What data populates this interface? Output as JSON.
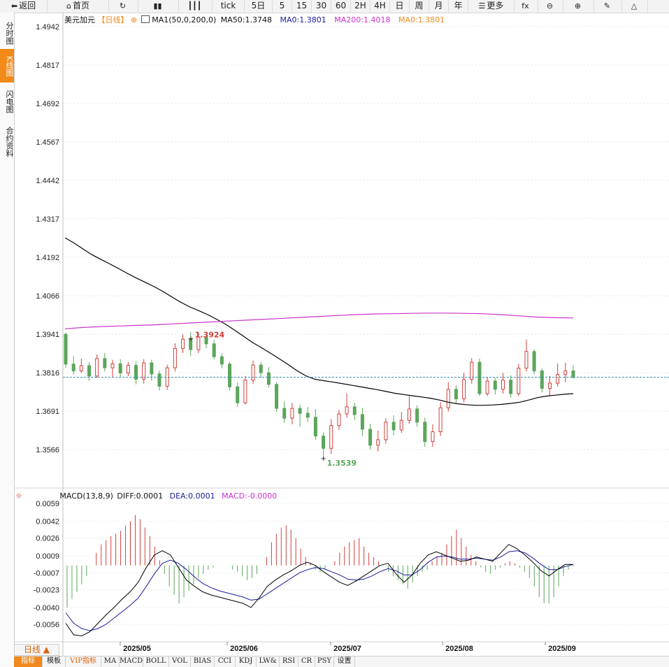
{
  "toolbar": {
    "items": [
      {
        "name": "back-button",
        "label": "返回",
        "icon": "back-arrow-icon",
        "glyph": "⬅"
      },
      {
        "name": "home-button",
        "label": "首页",
        "icon": "home-icon",
        "glyph": "⌂"
      },
      {
        "name": "refresh-button",
        "label": "",
        "icon": "refresh-icon",
        "glyph": "↻"
      },
      {
        "name": "chart-type-button",
        "label": "",
        "icon": "bar-chart-icon",
        "glyph": "▮▮"
      },
      {
        "name": "candles-button",
        "label": "",
        "icon": "candlestick-icon",
        "glyph": "┃┃┃"
      },
      {
        "name": "period-tick",
        "label": "tick",
        "icon": "",
        "glyph": ""
      },
      {
        "name": "period-5d",
        "label": "5日",
        "icon": "",
        "glyph": ""
      },
      {
        "name": "period-5",
        "label": "5",
        "icon": "",
        "glyph": ""
      },
      {
        "name": "period-15",
        "label": "15",
        "icon": "",
        "glyph": ""
      },
      {
        "name": "period-30",
        "label": "30",
        "icon": "",
        "glyph": ""
      },
      {
        "name": "period-60",
        "label": "60",
        "icon": "",
        "glyph": ""
      },
      {
        "name": "period-2h",
        "label": "2H",
        "icon": "",
        "glyph": ""
      },
      {
        "name": "period-4h",
        "label": "4H",
        "icon": "",
        "glyph": ""
      },
      {
        "name": "period-day",
        "label": "日",
        "icon": "",
        "glyph": ""
      },
      {
        "name": "period-week",
        "label": "周",
        "icon": "",
        "glyph": ""
      },
      {
        "name": "period-month",
        "label": "月",
        "icon": "",
        "glyph": ""
      },
      {
        "name": "period-year",
        "label": "年",
        "icon": "",
        "glyph": ""
      },
      {
        "name": "more-button",
        "label": "更多",
        "icon": "menu-icon",
        "glyph": "☰"
      },
      {
        "name": "fx-button",
        "label": "",
        "icon": "fx-icon",
        "glyph": "fx"
      },
      {
        "name": "zoom-out-button",
        "label": "",
        "icon": "zoom-out-icon",
        "glyph": "⊖"
      },
      {
        "name": "zoom-in-button",
        "label": "",
        "icon": "zoom-in-icon",
        "glyph": "⊕"
      },
      {
        "name": "draw-button",
        "label": "",
        "icon": "pen-icon",
        "glyph": "✎"
      },
      {
        "name": "triangle-button",
        "label": "",
        "icon": "triangle-icon",
        "glyph": "△"
      }
    ]
  },
  "sidetabs": [
    {
      "label": "分时图",
      "active": false
    },
    {
      "label": "K线图",
      "active": true
    },
    {
      "label": "闪电图",
      "active": false
    },
    {
      "label": "合约资料",
      "active": false
    }
  ],
  "legend": {
    "symbol": "美元加元",
    "period": "【日线】",
    "gear": "⊕",
    "ma1": "MA1(50,0,200,0)",
    "ma50": "MA50:1.3748",
    "ma0": "MA0:1.3801",
    "ma200": "MA200:1.4018",
    "ma0b": "MA0:1.3801"
  },
  "macd_legend": {
    "name": "MACD(13,8,9)",
    "diff": "DIFF:0.0001",
    "dea": "DEA:0.0001",
    "macd": "MACD:-0.0000"
  },
  "colors": {
    "up": "#d0413c",
    "down": "#5ba65b",
    "ma50": "#000000",
    "ma200": "#cc33cc",
    "dea": "#1b1b9e",
    "macd_label": "#cc33cc",
    "ma0_label": "#f08a1d",
    "last_line": "#2a8fb0"
  },
  "chart_data": {
    "type": "candlestick",
    "title": "美元加元",
    "y_ticks": [
      "1.4942",
      "1.4817",
      "1.4692",
      "1.4567",
      "1.4442",
      "1.4317",
      "1.4192",
      "1.4066",
      "1.3941",
      "1.3816",
      "1.3691",
      "1.3566"
    ],
    "ylim": [
      1.3466,
      1.4992
    ],
    "x_ticks": [
      "2025/05",
      "2025/06",
      "2025/07",
      "2025/08",
      "2025/09"
    ],
    "high_annotation": "1.3924",
    "low_annotation": "1.3539",
    "last_value": 1.3801,
    "ma50_series": [
      1.4255,
      1.4238,
      1.4219,
      1.42,
      1.4185,
      1.417,
      1.4155,
      1.4139,
      1.4124,
      1.411,
      1.4096,
      1.408,
      1.4062,
      1.4045,
      1.403,
      1.4018,
      1.4005,
      1.399,
      1.3974,
      1.3955,
      1.3935,
      1.3915,
      1.3898,
      1.388,
      1.3862,
      1.3843,
      1.3823,
      1.3806,
      1.3795,
      1.379,
      1.3786,
      1.3781,
      1.3776,
      1.3771,
      1.3766,
      1.3761,
      1.3755,
      1.3749,
      1.3745,
      1.3741,
      1.3737,
      1.3733,
      1.3727,
      1.372,
      1.3715,
      1.3712,
      1.371,
      1.371,
      1.3711,
      1.3713,
      1.3716,
      1.372,
      1.3727,
      1.3735,
      1.374,
      1.3743,
      1.3746,
      1.3748
    ],
    "ma200_series": [
      1.3959,
      1.3963,
      1.3966,
      1.3968,
      1.397,
      1.3972,
      1.3975,
      1.3978,
      1.3981,
      1.3984,
      1.3987,
      1.399,
      1.3993,
      1.3996,
      1.3999,
      1.4002,
      1.4005,
      1.4007,
      1.4008,
      1.4009,
      1.401,
      1.401,
      1.4009,
      1.4008,
      1.4005,
      1.4001,
      1.3997,
      1.3995,
      1.3994
    ],
    "candles": [
      [
        1.3941,
        1.3844,
        1.3946,
        1.3832
      ],
      [
        1.3844,
        1.3822,
        1.387,
        1.381
      ],
      [
        1.3822,
        1.3839,
        1.3862,
        1.3815
      ],
      [
        1.3839,
        1.3805,
        1.385,
        1.379
      ],
      [
        1.3805,
        1.3862,
        1.3875,
        1.3799
      ],
      [
        1.3862,
        1.3832,
        1.388,
        1.382
      ],
      [
        1.3832,
        1.3845,
        1.3858,
        1.38
      ],
      [
        1.3845,
        1.3815,
        1.386,
        1.3801
      ],
      [
        1.3815,
        1.384,
        1.3851,
        1.3805
      ],
      [
        1.384,
        1.3795,
        1.3854,
        1.3778
      ],
      [
        1.3795,
        1.3848,
        1.386,
        1.378
      ],
      [
        1.3848,
        1.3812,
        1.3858,
        1.379
      ],
      [
        1.3812,
        1.3772,
        1.3822,
        1.3758
      ],
      [
        1.3772,
        1.3832,
        1.3842,
        1.376
      ],
      [
        1.3832,
        1.3895,
        1.3912,
        1.382
      ],
      [
        1.3895,
        1.3925,
        1.3941,
        1.388
      ],
      [
        1.3925,
        1.3891,
        1.3948,
        1.387
      ],
      [
        1.3891,
        1.3932,
        1.3946,
        1.388
      ],
      [
        1.3932,
        1.391,
        1.3941,
        1.3895
      ],
      [
        1.391,
        1.3868,
        1.3922,
        1.386
      ],
      [
        1.3868,
        1.3844,
        1.3879,
        1.383
      ],
      [
        1.3844,
        1.377,
        1.3851,
        1.3758
      ],
      [
        1.377,
        1.3718,
        1.3785,
        1.3705
      ],
      [
        1.3718,
        1.3792,
        1.3805,
        1.3712
      ],
      [
        1.3792,
        1.3841,
        1.3856,
        1.378
      ],
      [
        1.3841,
        1.3816,
        1.3851,
        1.38
      ],
      [
        1.3816,
        1.3778,
        1.3834,
        1.3768
      ],
      [
        1.3778,
        1.37,
        1.3785,
        1.3689
      ],
      [
        1.37,
        1.3668,
        1.3722,
        1.3652
      ],
      [
        1.3668,
        1.37,
        1.3718,
        1.3648
      ],
      [
        1.37,
        1.3684,
        1.3712,
        1.364
      ],
      [
        1.3684,
        1.3671,
        1.3704,
        1.3655
      ],
      [
        1.3671,
        1.361,
        1.3698,
        1.3598
      ],
      [
        1.361,
        1.357,
        1.3622,
        1.3539
      ],
      [
        1.357,
        1.3644,
        1.3665,
        1.3552
      ],
      [
        1.3644,
        1.3682,
        1.3695,
        1.363
      ],
      [
        1.3682,
        1.3705,
        1.3748,
        1.367
      ],
      [
        1.3705,
        1.368,
        1.3718,
        1.3662
      ],
      [
        1.368,
        1.3632,
        1.3702,
        1.361
      ],
      [
        1.3632,
        1.358,
        1.365,
        1.3566
      ],
      [
        1.358,
        1.3598,
        1.3628,
        1.356
      ],
      [
        1.3598,
        1.3655,
        1.3668,
        1.3585
      ],
      [
        1.3655,
        1.363,
        1.3677,
        1.3612
      ],
      [
        1.363,
        1.3661,
        1.3688,
        1.362
      ],
      [
        1.3661,
        1.3698,
        1.374,
        1.365
      ],
      [
        1.3698,
        1.3655,
        1.371,
        1.364
      ],
      [
        1.3655,
        1.3592,
        1.367,
        1.3575
      ],
      [
        1.3592,
        1.3624,
        1.3648,
        1.3575
      ],
      [
        1.3624,
        1.3702,
        1.372,
        1.361
      ],
      [
        1.3702,
        1.3762,
        1.3785,
        1.369
      ],
      [
        1.3762,
        1.3731,
        1.3775,
        1.3718
      ],
      [
        1.3731,
        1.3794,
        1.3816,
        1.372
      ],
      [
        1.3794,
        1.385,
        1.3864,
        1.378
      ],
      [
        1.385,
        1.3748,
        1.3862,
        1.374
      ],
      [
        1.3748,
        1.3789,
        1.3801,
        1.374
      ],
      [
        1.3789,
        1.3762,
        1.38,
        1.3745
      ],
      [
        1.3762,
        1.3792,
        1.3815,
        1.3748
      ],
      [
        1.3792,
        1.3748,
        1.3808,
        1.3735
      ],
      [
        1.3748,
        1.3831,
        1.3845,
        1.374
      ],
      [
        1.3831,
        1.3885,
        1.3924,
        1.382
      ],
      [
        1.3885,
        1.3822,
        1.3892,
        1.381
      ],
      [
        1.3822,
        1.3765,
        1.383,
        1.3752
      ],
      [
        1.3765,
        1.3782,
        1.3805,
        1.374
      ],
      [
        1.3782,
        1.381,
        1.3846,
        1.377
      ],
      [
        1.381,
        1.3822,
        1.3848,
        1.3785
      ],
      [
        1.3822,
        1.3801,
        1.384,
        1.3796
      ]
    ],
    "macd": {
      "ylim": [
        -0.0074,
        0.0066
      ],
      "y_ticks": [
        "0.0059",
        "0.0042",
        "0.0026",
        "0.0009",
        "-0.0007",
        "-0.0023",
        "-0.0040",
        "-0.0056"
      ],
      "diff": [
        -0.0055,
        -0.0066,
        -0.0067,
        -0.0063,
        -0.0055,
        -0.0047,
        -0.004,
        -0.0032,
        -0.0025,
        -0.0016,
        -0.0002,
        0.001,
        0.0014,
        0.001,
        -0.0002,
        -0.0014,
        -0.002,
        -0.0025,
        -0.0028,
        -0.003,
        -0.0032,
        -0.0034,
        -0.0036,
        -0.004,
        -0.0031,
        -0.002,
        -0.0014,
        -0.0009,
        -0.0005,
        0.0,
        0.0003,
        0.0,
        -0.0006,
        -0.0011,
        -0.0016,
        -0.0019,
        -0.0015,
        -0.001,
        -0.0005,
        0.0,
        0.0002,
        -0.0008,
        -0.0016,
        -0.0009,
        0.0002,
        0.001,
        0.0013,
        0.001,
        0.0007,
        0.0004,
        0.0005,
        0.0008,
        0.0006,
        0.0004,
        0.0012,
        0.002,
        0.0016,
        0.001,
        0.0003,
        -0.0005,
        -0.001,
        -0.0004,
        0.0001,
        0.0001
      ],
      "dea": [
        -0.0045,
        -0.0055,
        -0.006,
        -0.0062,
        -0.006,
        -0.0056,
        -0.005,
        -0.0044,
        -0.0038,
        -0.0031,
        -0.002,
        -0.0008,
        0.0002,
        0.0005,
        0.0002,
        -0.0004,
        -0.0011,
        -0.0017,
        -0.0021,
        -0.0024,
        -0.0026,
        -0.0028,
        -0.003,
        -0.0033,
        -0.0032,
        -0.0027,
        -0.0022,
        -0.0017,
        -0.0012,
        -0.0007,
        -0.0004,
        -0.0002,
        -0.0003,
        -0.0006,
        -0.0009,
        -0.0013,
        -0.0014,
        -0.0013,
        -0.001,
        -0.0006,
        -0.0003,
        -0.0005,
        -0.0009,
        -0.0009,
        -0.0004,
        0.0003,
        0.0008,
        0.0009,
        0.0008,
        0.0006,
        0.0006,
        0.0007,
        0.0006,
        0.0005,
        0.0008,
        0.0013,
        0.0014,
        0.0012,
        0.0007,
        0.0001,
        -0.0004,
        -0.0004,
        -0.0001,
        0.0001
      ],
      "hist": [
        -0.004,
        -0.0032,
        -0.0025,
        -0.0018,
        -0.001,
        0.0,
        0.0012,
        0.002,
        0.0024,
        0.0028,
        0.003,
        0.0033,
        0.0038,
        0.0042,
        0.0048,
        0.0044,
        0.0036,
        0.0028,
        0.0018,
        0.0005,
        -0.0008,
        -0.002,
        -0.0028,
        -0.0036,
        -0.003,
        -0.0024,
        -0.0018,
        -0.0012,
        -0.0008,
        -0.0004,
        -0.0002,
        0.0,
        0.0,
        0.0,
        -0.0004,
        -0.0006,
        -0.001,
        -0.0014,
        -0.0012,
        -0.0008,
        0.0,
        0.0008,
        0.0022,
        0.003,
        0.0036,
        0.0038,
        0.0034,
        0.0026,
        0.0016,
        0.0008,
        0.0002,
        -0.0004,
        -0.0006,
        -0.0004,
        0.0,
        0.0004,
        0.0012,
        0.0018,
        0.0022,
        0.0024,
        0.0026,
        0.0018,
        0.0012,
        0.0008,
        0.0004,
        0.0,
        -0.0006,
        -0.001,
        -0.0014,
        -0.0018,
        -0.0022,
        -0.0016,
        -0.001,
        -0.0006,
        -0.0004,
        0.0004,
        0.0008,
        0.0012,
        0.002,
        0.0028,
        0.0034,
        0.0026,
        0.0018,
        0.001,
        0.0004,
        -0.0002,
        -0.0006,
        -0.0008,
        -0.0004,
        -0.0002,
        0.0002,
        0.0004,
        0.0002,
        -0.0002,
        -0.0006,
        -0.0012,
        -0.002,
        -0.003,
        -0.0036,
        -0.0036,
        -0.003,
        -0.002,
        -0.001,
        -0.0004,
        -0.0001
      ]
    }
  },
  "bottom": {
    "period_label": "日线 ▲",
    "tabs": [
      "指标",
      "模板",
      "VIP指标",
      "MA",
      "MACD",
      "BOLL",
      "VOL",
      "BIAS",
      "CCI",
      "KDJ",
      "LW&",
      "RSI",
      "CR",
      "PSY",
      "设置"
    ]
  }
}
